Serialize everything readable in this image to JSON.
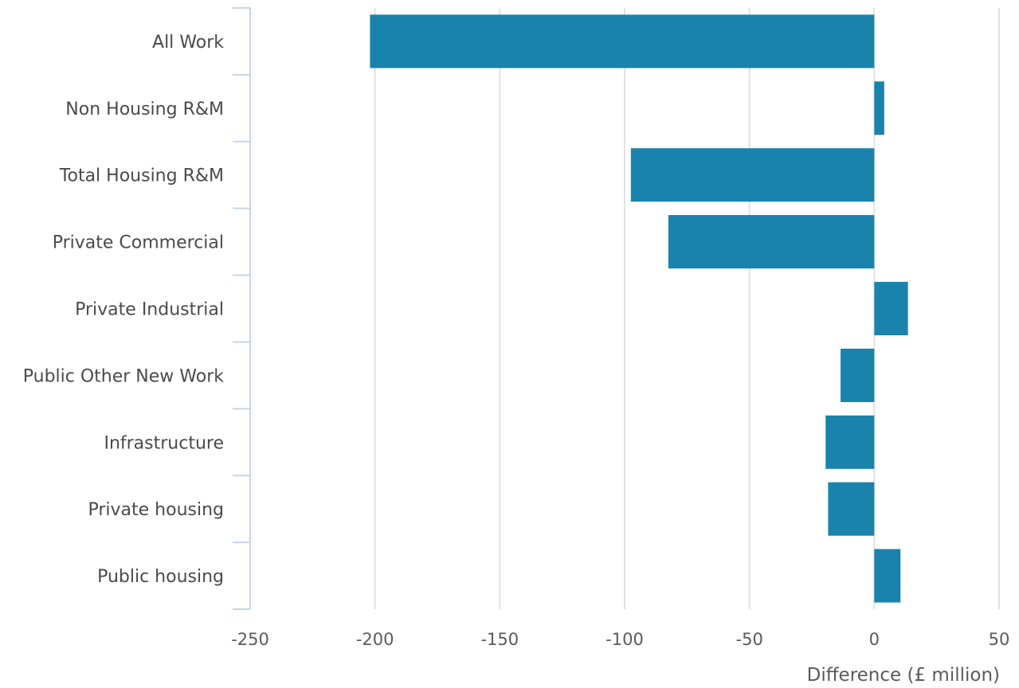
{
  "chart_data": {
    "type": "bar",
    "orientation": "horizontal",
    "categories": [
      "All Work",
      "Non Housing R&M",
      "Total Housing R&M",
      "Private Commercial",
      "Private Industrial",
      "Public Other New Work",
      "Infrastructure",
      "Private housing",
      "Public housing"
    ],
    "values": [
      -202,
      4,
      -97.5,
      -82.5,
      13.5,
      -13.5,
      -19.5,
      -18.5,
      10.5
    ],
    "title": "",
    "xlabel": "Difference (£ million)",
    "ylabel": "",
    "xlim": [
      -250,
      50
    ],
    "xticks": [
      -250,
      -200,
      -150,
      -100,
      -50,
      0,
      50
    ],
    "xtick_labels": [
      "-250",
      "-200",
      "-150",
      "-100",
      "-50",
      "0",
      "50"
    ],
    "grid": true,
    "legend": "none",
    "bar_color": "#1a83ad",
    "axis_color": "#c8d3e8",
    "grid_color": "#e2e2e2"
  }
}
